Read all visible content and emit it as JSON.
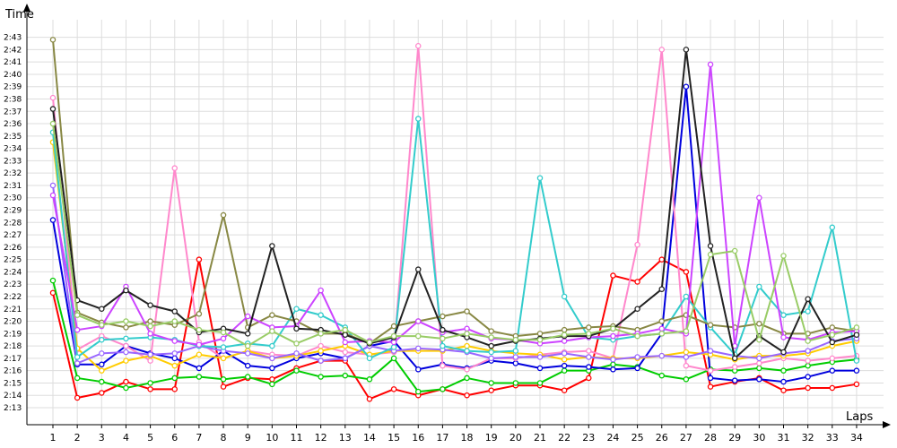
{
  "chart_data": {
    "type": "line",
    "xlabel": "Laps",
    "ylabel": "Time",
    "x": [
      1,
      2,
      3,
      4,
      5,
      6,
      7,
      8,
      9,
      10,
      11,
      12,
      13,
      14,
      15,
      16,
      17,
      18,
      19,
      20,
      21,
      22,
      23,
      24,
      25,
      26,
      27,
      28,
      29,
      30,
      31,
      32,
      33,
      34
    ],
    "x_range": [
      0,
      34.3
    ],
    "y_range": [
      "2:12",
      "2:45"
    ],
    "y_ticks": [
      "2:13",
      "2:14",
      "2:15",
      "2:16",
      "2:17",
      "2:18",
      "2:19",
      "2:20",
      "2:21",
      "2:22",
      "2:23",
      "2:24",
      "2:25",
      "2:26",
      "2:27",
      "2:28",
      "2:29",
      "2:30",
      "2:31",
      "2:32",
      "2:33",
      "2:34",
      "2:35",
      "2:36",
      "2:37",
      "2:38",
      "2:39",
      "2:40",
      "2:41",
      "2:42",
      "2:43"
    ],
    "grid": true,
    "legend": "none",
    "series": [
      {
        "color": "#ff0000",
        "values": [
          "2:22.3",
          "2:13.8",
          "2:14.2",
          "2:15.1",
          "2:14.5",
          "2:14.5",
          "2:25.0",
          "2:14.7",
          "2:15.4",
          "2:15.3",
          "2:16.2",
          "2:16.8",
          "2:16.8",
          "2:13.7",
          "2:14.5",
          "2:14.0",
          "2:14.5",
          "2:14.0",
          "2:14.4",
          "2:14.8",
          "2:14.8",
          "2:14.4",
          "2:15.4",
          "2:23.7",
          "2:23.2",
          "2:25.0",
          "2:24.0",
          "2:14.7",
          "2:15.1",
          "2:15.4",
          "2:14.4",
          "2:14.6",
          "2:14.6",
          "2:14.9"
        ]
      },
      {
        "color": "#00cc00",
        "values": [
          "2:23.3",
          "2:15.4",
          "2:15.1",
          "2:14.6",
          "2:15.0",
          "2:15.4",
          "2:15.5",
          "2:15.3",
          "2:15.5",
          "2:14.9",
          "2:16.0",
          "2:15.5",
          "2:15.6",
          "2:15.3",
          "2:17.0",
          "2:14.3",
          "2:14.5",
          "2:15.4",
          "2:15.0",
          "2:15.0",
          "2:15.0",
          "2:16.0",
          "2:16.0",
          "2:16.5",
          "2:16.3",
          "2:15.6",
          "2:15.3",
          "2:16.1",
          "2:16.0",
          "2:16.2",
          "2:16.0",
          "2:16.4",
          "2:16.7",
          "2:16.9"
        ]
      },
      {
        "color": "#0000dd",
        "values": [
          "2:28.2",
          "2:16.5",
          "2:16.5",
          "2:18.0",
          "2:17.4",
          "2:17.0",
          "2:16.2",
          "2:17.6",
          "2:16.4",
          "2:16.2",
          "2:17.0",
          "2:17.4",
          "2:17.0",
          "2:18.0",
          "2:18.4",
          "2:16.1",
          "2:16.5",
          "2:16.2",
          "2:16.8",
          "2:16.6",
          "2:16.2",
          "2:16.4",
          "2:16.3",
          "2:16.1",
          "2:16.2",
          "2:19.0",
          "2:39.0",
          "2:15.4",
          "2:15.2",
          "2:15.3",
          "2:15.1",
          "2:15.5",
          "2:16.0",
          "2:16.0"
        ]
      },
      {
        "color": "#ff88cc",
        "values": [
          "2:38.1",
          "2:17.7",
          "2:18.8",
          "2:18.0",
          "2:16.8",
          "2:32.4",
          "2:18.3",
          "2:17.0",
          "2:17.6",
          "2:17.3",
          "2:17.2",
          "2:18.0",
          "2:17.5",
          "2:17.3",
          "2:17.5",
          "2:42.3",
          "2:16.4",
          "2:16.1",
          "2:17.0",
          "2:17.0",
          "2:17.3",
          "2:17.5",
          "2:17.6",
          "2:17.0",
          "2:26.2",
          "2:42.0",
          "2:16.4",
          "2:16.0",
          "2:16.3",
          "2:16.6",
          "2:17.0",
          "2:16.8",
          "2:17.0",
          "2:17.2"
        ]
      },
      {
        "color": "#ffcc00",
        "values": [
          "2:34.5",
          "2:17.8",
          "2:16.0",
          "2:16.8",
          "2:17.2",
          "2:16.4",
          "2:17.3",
          "2:17.0",
          "2:17.6",
          "2:17.0",
          "2:17.2",
          "2:17.6",
          "2:18.0",
          "2:17.3",
          "2:17.6",
          "2:17.6",
          "2:17.6",
          "2:18.0",
          "2:17.6",
          "2:17.4",
          "2:17.3",
          "2:16.9",
          "2:17.1",
          "2:17.0",
          "2:17.0",
          "2:17.2",
          "2:17.5",
          "2:17.3",
          "2:16.9",
          "2:17.2",
          "2:17.2",
          "2:17.4",
          "2:18.0",
          "2:18.4"
        ]
      },
      {
        "color": "#9966ff",
        "values": [
          "2:31.0",
          "2:16.6",
          "2:17.4",
          "2:17.5",
          "2:17.3",
          "2:17.4",
          "2:18.0",
          "2:17.6",
          "2:17.4",
          "2:17.0",
          "2:17.4",
          "2:16.8",
          "2:17.0",
          "2:18.0",
          "2:17.6",
          "2:17.8",
          "2:17.7",
          "2:17.5",
          "2:17.0",
          "2:17.1",
          "2:17.1",
          "2:17.4",
          "2:17.1",
          "2:16.9",
          "2:17.1",
          "2:17.2",
          "2:17.1",
          "2:17.6",
          "2:17.2",
          "2:17.0",
          "2:17.4",
          "2:17.6",
          "2:18.4",
          "2:18.6"
        ]
      },
      {
        "color": "#33cccc",
        "values": [
          "2:35.3",
          "2:17.1",
          "2:18.5",
          "2:18.6",
          "2:18.7",
          "2:18.5",
          "2:18.0",
          "2:17.9",
          "2:18.2",
          "2:18.0",
          "2:21.0",
          "2:20.5",
          "2:19.5",
          "2:17.0",
          "2:17.9",
          "2:36.4",
          "2:18.0",
          "2:17.6",
          "2:17.5",
          "2:17.6",
          "2:31.6",
          "2:22.0",
          "2:18.7",
          "2:18.5",
          "2:18.8",
          "2:19.0",
          "2:22.0",
          "2:19.5",
          "2:17.3",
          "2:22.8",
          "2:20.5",
          "2:20.8",
          "2:27.6",
          "2:16.8"
        ]
      },
      {
        "color": "#888844",
        "values": [
          "2:42.8",
          "2:20.7",
          "2:19.9",
          "2:19.5",
          "2:20.0",
          "2:19.7",
          "2:20.6",
          "2:28.6",
          "2:19.5",
          "2:20.5",
          "2:20.0",
          "2:19.0",
          "2:19.0",
          "2:18.2",
          "2:19.6",
          "2:20.0",
          "2:20.4",
          "2:20.8",
          "2:19.2",
          "2:18.8",
          "2:19.0",
          "2:19.3",
          "2:19.5",
          "2:19.6",
          "2:19.3",
          "2:20.0",
          "2:20.5",
          "2:19.7",
          "2:19.5",
          "2:19.8",
          "2:19.0",
          "2:19.0",
          "2:19.5",
          "2:19.2"
        ]
      },
      {
        "color": "#cc44ff",
        "values": [
          "2:30.2",
          "2:19.3",
          "2:19.6",
          "2:22.8",
          "2:19.0",
          "2:18.4",
          "2:18.1",
          "2:18.6",
          "2:20.4",
          "2:19.5",
          "2:19.6",
          "2:22.5",
          "2:18.3",
          "2:18.4",
          "2:18.3",
          "2:20.0",
          "2:19.1",
          "2:19.4",
          "2:18.6",
          "2:18.5",
          "2:18.2",
          "2:18.4",
          "2:18.7",
          "2:18.8",
          "2:19.0",
          "2:19.4",
          "2:19.0",
          "2:40.8",
          "2:18.0",
          "2:30.0",
          "2:18.7",
          "2:18.5",
          "2:19.1",
          "2:19.2"
        ]
      },
      {
        "color": "#222222",
        "values": [
          "2:37.2",
          "2:21.7",
          "2:21.0",
          "2:22.5",
          "2:21.3",
          "2:20.8",
          "2:19.1",
          "2:19.4",
          "2:19.0",
          "2:26.1",
          "2:19.4",
          "2:19.3",
          "2:18.9",
          "2:18.2",
          "2:18.7",
          "2:24.2",
          "2:19.3",
          "2:18.7",
          "2:18.0",
          "2:18.4",
          "2:18.6",
          "2:18.8",
          "2:18.8",
          "2:19.4",
          "2:21.0",
          "2:22.6",
          "2:42.0",
          "2:26.1",
          "2:17.0",
          "2:18.8",
          "2:17.5",
          "2:21.8",
          "2:18.3",
          "2:18.9"
        ]
      },
      {
        "color": "#99cc66",
        "values": [
          "2:36.0",
          "2:20.5",
          "2:19.7",
          "2:20.0",
          "2:19.6",
          "2:20.0",
          "2:19.3",
          "2:19.1",
          "2:18.0",
          "2:19.2",
          "2:18.2",
          "2:19.0",
          "2:19.3",
          "2:18.3",
          "2:18.8",
          "2:18.8",
          "2:18.6",
          "2:19.0",
          "2:18.7",
          "2:18.5",
          "2:18.5",
          "2:18.9",
          "2:19.0",
          "2:19.4",
          "2:18.8",
          "2:19.0",
          "2:19.2",
          "2:25.4",
          "2:25.7",
          "2:18.5",
          "2:25.3",
          "2:18.4",
          "2:18.9",
          "2:19.5"
        ]
      }
    ]
  }
}
